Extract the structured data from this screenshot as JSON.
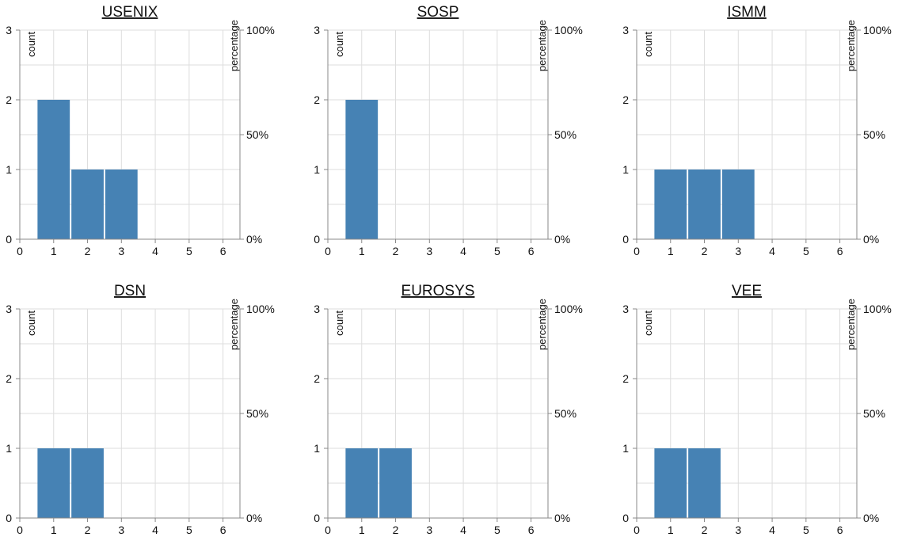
{
  "chart_data": {
    "type": "bar",
    "layout": {
      "columns": 3,
      "rows": 2
    },
    "bar_color": "#4682b4",
    "grid": true,
    "panels": [
      {
        "title": "USENIX",
        "x": [
          1,
          2,
          3
        ],
        "values": [
          2,
          1,
          1
        ],
        "xlabel": "",
        "ylabel": "count",
        "ylabel2": "percentage",
        "xlim": [
          0,
          6.5
        ],
        "ylim": [
          0,
          3
        ],
        "xticks": [
          "0",
          "1",
          "2",
          "3",
          "4",
          "5",
          "6"
        ],
        "yticks": [
          "0",
          "1",
          "2",
          "3"
        ],
        "yticks2": [
          "0%",
          "50%",
          "100%"
        ]
      },
      {
        "title": "SOSP",
        "x": [
          1
        ],
        "values": [
          2
        ],
        "xlabel": "",
        "ylabel": "count",
        "ylabel2": "percentage",
        "xlim": [
          0,
          6.5
        ],
        "ylim": [
          0,
          3
        ],
        "xticks": [
          "0",
          "1",
          "2",
          "3",
          "4",
          "5",
          "6"
        ],
        "yticks": [
          "0",
          "1",
          "2",
          "3"
        ],
        "yticks2": [
          "0%",
          "50%",
          "100%"
        ]
      },
      {
        "title": "ISMM",
        "x": [
          1,
          2,
          3
        ],
        "values": [
          1,
          1,
          1
        ],
        "xlabel": "",
        "ylabel": "count",
        "ylabel2": "percentage",
        "xlim": [
          0,
          6.5
        ],
        "ylim": [
          0,
          3
        ],
        "xticks": [
          "0",
          "1",
          "2",
          "3",
          "4",
          "5",
          "6"
        ],
        "yticks": [
          "0",
          "1",
          "2",
          "3"
        ],
        "yticks2": [
          "0%",
          "50%",
          "100%"
        ]
      },
      {
        "title": "DSN",
        "x": [
          1,
          2
        ],
        "values": [
          1,
          1
        ],
        "xlabel": "",
        "ylabel": "count",
        "ylabel2": "percentage",
        "xlim": [
          0,
          6.5
        ],
        "ylim": [
          0,
          3
        ],
        "xticks": [
          "0",
          "1",
          "2",
          "3",
          "4",
          "5",
          "6"
        ],
        "yticks": [
          "0",
          "1",
          "2",
          "3"
        ],
        "yticks2": [
          "0%",
          "50%",
          "100%"
        ]
      },
      {
        "title": "EUROSYS",
        "x": [
          1,
          2
        ],
        "values": [
          1,
          1
        ],
        "xlabel": "",
        "ylabel": "count",
        "ylabel2": "percentage",
        "xlim": [
          0,
          6.5
        ],
        "ylim": [
          0,
          3
        ],
        "xticks": [
          "0",
          "1",
          "2",
          "3",
          "4",
          "5",
          "6"
        ],
        "yticks": [
          "0",
          "1",
          "2",
          "3"
        ],
        "yticks2": [
          "0%",
          "50%",
          "100%"
        ]
      },
      {
        "title": "VEE",
        "x": [
          1,
          2
        ],
        "values": [
          1,
          1
        ],
        "xlabel": "",
        "ylabel": "count",
        "ylabel2": "percentage",
        "xlim": [
          0,
          6.5
        ],
        "ylim": [
          0,
          3
        ],
        "xticks": [
          "0",
          "1",
          "2",
          "3",
          "4",
          "5",
          "6"
        ],
        "yticks": [
          "0",
          "1",
          "2",
          "3"
        ],
        "yticks2": [
          "0%",
          "50%",
          "100%"
        ]
      }
    ]
  }
}
